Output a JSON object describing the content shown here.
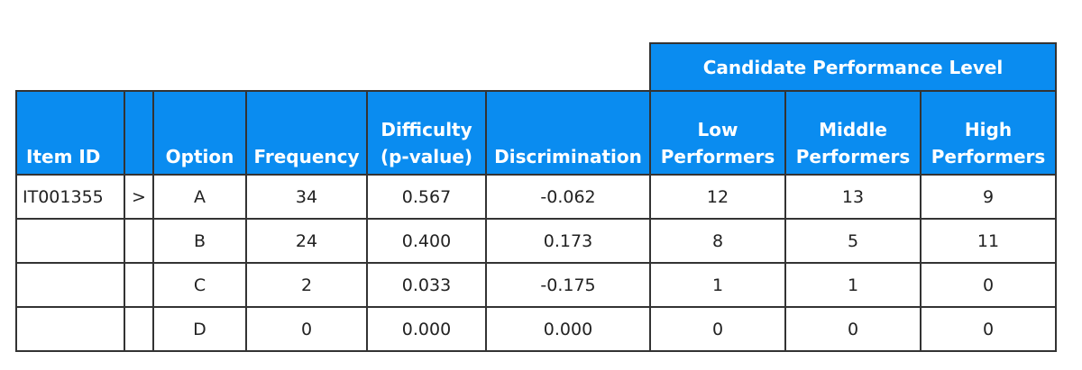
{
  "header": {
    "group_label": "Candidate Performance Level",
    "columns": {
      "item_id": "Item ID",
      "marker": "",
      "option": "Option",
      "frequency": "Frequency",
      "difficulty_line1": "Difficulty",
      "difficulty_line2": "(p-value)",
      "discrimination": "Discrimination",
      "low_line1": "Low",
      "low_line2": "Performers",
      "middle_line1": "Middle",
      "middle_line2": "Performers",
      "high_line1": "High",
      "high_line2": "Performers"
    }
  },
  "rows": [
    {
      "item_id": "IT001355",
      "marker": ">",
      "option": "A",
      "frequency": "34",
      "difficulty": "0.567",
      "discrimination": "-0.062",
      "low": "12",
      "middle": "13",
      "high": "9"
    },
    {
      "item_id": "",
      "marker": "",
      "option": "B",
      "frequency": "24",
      "difficulty": "0.400",
      "discrimination": "0.173",
      "low": "8",
      "middle": "5",
      "high": "11"
    },
    {
      "item_id": "",
      "marker": "",
      "option": "C",
      "frequency": "2",
      "difficulty": "0.033",
      "discrimination": "-0.175",
      "low": "1",
      "middle": "1",
      "high": "0"
    },
    {
      "item_id": "",
      "marker": "",
      "option": "D",
      "frequency": "0",
      "difficulty": "0.000",
      "discrimination": "0.000",
      "low": "0",
      "middle": "0",
      "high": "0"
    }
  ],
  "colors": {
    "header_blue": "#0a8cf0",
    "border": "#333333",
    "header_text": "#ffffff"
  }
}
